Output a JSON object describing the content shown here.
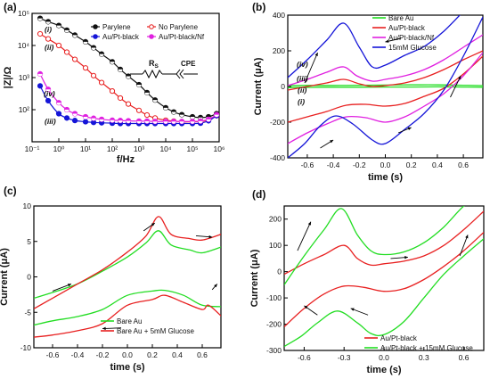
{
  "chart_data": [
    {
      "panel": "(a)",
      "type": "line",
      "xlabel": "f/Hz",
      "ylabel": "|Z|/Ω",
      "xscale": "log",
      "yscale": "log",
      "xlim": [
        0.1,
        1000000
      ],
      "ylim": [
        10,
        100000
      ],
      "x_tick_labels": [
        "10⁻¹",
        "10⁰",
        "10¹",
        "10²",
        "10³",
        "10⁴",
        "10⁵",
        "10⁶"
      ],
      "y_tick_labels": [
        "10²",
        "10³",
        "10⁴",
        "10⁵"
      ],
      "legend": [
        "Parylene",
        "No Parylene",
        "Au/Pt-black",
        "Au/Pt-black/Nf"
      ],
      "legend_position": "top",
      "circuit_labels": {
        "resistor": "R_S",
        "element": "CPE"
      },
      "x": [
        0.2,
        0.4,
        1,
        2,
        4,
        10,
        20,
        40,
        100,
        200,
        400,
        1000,
        2000,
        4000,
        10000,
        20000,
        40000,
        100000,
        200000,
        400000,
        800000
      ],
      "series": [
        {
          "name": "Parylene",
          "label": "(i)",
          "color": "#111111",
          "marker": "circle-half",
          "values": [
            70000,
            55000,
            42000,
            30000,
            21000,
            13000,
            8500,
            5400,
            3100,
            1800,
            1100,
            600,
            340,
            200,
            115,
            85,
            70,
            60,
            57,
            60,
            75
          ]
        },
        {
          "name": "No Parylene",
          "label": "(ii)",
          "color": "#e82020",
          "marker": "circle-open",
          "values": [
            23000,
            16000,
            10000,
            6200,
            3700,
            2000,
            1150,
            700,
            380,
            230,
            150,
            95,
            68,
            55,
            47,
            44,
            42,
            42,
            43,
            47,
            65
          ]
        },
        {
          "name": "Au/Pt-black",
          "label": "(iii)",
          "color": "#1515d8",
          "marker": "circle",
          "values": [
            550,
            190,
            75,
            55,
            46,
            42,
            40,
            39,
            38,
            37,
            37,
            37,
            37,
            37,
            37,
            37,
            37,
            37,
            38,
            45,
            65
          ]
        },
        {
          "name": "Au/Pt-black/Nf",
          "label": "(iv)",
          "color": "#e020e0",
          "marker": "circle-half",
          "values": [
            1300,
            430,
            165,
            100,
            75,
            60,
            54,
            50,
            47,
            46,
            45,
            44,
            44,
            43,
            43,
            43,
            43,
            43,
            44,
            50,
            70
          ]
        }
      ]
    },
    {
      "panel": "(b)",
      "type": "line",
      "xlabel": "time (s)",
      "ylabel": "Current (μA)",
      "xlim": [
        -0.75,
        0.75
      ],
      "ylim": [
        -400,
        400
      ],
      "x_ticks": [
        -0.6,
        -0.4,
        -0.2,
        0.0,
        0.2,
        0.4,
        0.6
      ],
      "y_ticks": [
        -400,
        -200,
        0,
        200,
        400
      ],
      "legend": [
        "Bare Au",
        "Au/Pt-black",
        "Au/Pt-black/Nf",
        "15mM Glucose"
      ],
      "legend_position": "top-right",
      "series": [
        {
          "name": "Bare Au",
          "label": "(i)",
          "color": "#22dd22",
          "upper": {
            "x": [
              -0.75,
              -0.6,
              -0.4,
              -0.2,
              0.0,
              0.2,
              0.4,
              0.6,
              0.75
            ],
            "values": [
              5,
              6,
              6,
              7,
              8,
              9,
              9,
              7,
              5
            ]
          },
          "lower": {
            "x": [
              -0.75,
              -0.6,
              -0.4,
              -0.2,
              0.0,
              0.2,
              0.4,
              0.6,
              0.75
            ],
            "values": [
              -6,
              -5,
              -4,
              -4,
              -3,
              -3,
              -2,
              -3,
              -4
            ]
          }
        },
        {
          "name": "Au/Pt-black",
          "label": "(ii)",
          "color": "#e82020",
          "upper": {
            "x": [
              -0.75,
              -0.6,
              -0.45,
              -0.32,
              -0.2,
              -0.1,
              0.0,
              0.15,
              0.3,
              0.45,
              0.6,
              0.75
            ],
            "values": [
              -20,
              0,
              20,
              40,
              15,
              0,
              5,
              20,
              50,
              95,
              150,
              200
            ]
          },
          "lower": {
            "x": [
              -0.75,
              -0.6,
              -0.45,
              -0.3,
              -0.15,
              0.0,
              0.15,
              0.3,
              0.45,
              0.6,
              0.75
            ],
            "values": [
              -200,
              -170,
              -140,
              -105,
              -100,
              -110,
              -95,
              -55,
              -10,
              70,
              170
            ]
          }
        },
        {
          "name": "Au/Pt-black/Nf",
          "label": "(iii)",
          "color": "#e020e0",
          "upper": {
            "x": [
              -0.75,
              -0.6,
              -0.45,
              -0.32,
              -0.22,
              -0.1,
              0.0,
              0.15,
              0.3,
              0.45,
              0.6,
              0.75
            ],
            "values": [
              5,
              40,
              80,
              110,
              60,
              30,
              40,
              60,
              95,
              150,
              220,
              290
            ]
          },
          "lower": {
            "x": [
              -0.75,
              -0.6,
              -0.45,
              -0.3,
              -0.15,
              0.0,
              0.15,
              0.3,
              0.45,
              0.6,
              0.75
            ],
            "values": [
              -320,
              -260,
              -210,
              -170,
              -175,
              -200,
              -170,
              -110,
              -40,
              60,
              190
            ]
          }
        },
        {
          "name": "15mM Glucose",
          "label": "(iv)",
          "color": "#1515d8",
          "upper": {
            "x": [
              -0.75,
              -0.6,
              -0.45,
              -0.32,
              -0.2,
              -0.1,
              0.0,
              0.15,
              0.3,
              0.45,
              0.6,
              0.75
            ],
            "values": [
              50,
              150,
              260,
              355,
              220,
              110,
              120,
              175,
              225,
              310,
              420,
              520
            ]
          },
          "lower": {
            "x": [
              -0.75,
              -0.62,
              -0.5,
              -0.38,
              -0.25,
              -0.1,
              0.0,
              0.15,
              0.3,
              0.45,
              0.6,
              0.75
            ],
            "values": [
              -400,
              -320,
              -220,
              -165,
              -210,
              -300,
              -320,
              -240,
              -150,
              -20,
              170,
              390
            ]
          }
        }
      ]
    },
    {
      "panel": "(c)",
      "type": "line",
      "xlabel": "time (s)",
      "ylabel": "Current (μA)",
      "xlim": [
        -0.75,
        0.75
      ],
      "ylim": [
        -10,
        10
      ],
      "x_ticks": [
        -0.6,
        -0.4,
        -0.2,
        0.0,
        0.2,
        0.4,
        0.6
      ],
      "y_ticks": [
        -10,
        -5,
        0,
        5,
        10
      ],
      "legend": [
        "Bare Au",
        "Bare Au + 5mM Glucose"
      ],
      "legend_position": "bottom-center",
      "series": [
        {
          "name": "Bare Au",
          "color": "#22dd22",
          "upper": {
            "x": [
              -0.75,
              -0.6,
              -0.4,
              -0.2,
              0.0,
              0.15,
              0.25,
              0.35,
              0.5,
              0.6,
              0.75
            ],
            "values": [
              -3.0,
              -2.2,
              -1.0,
              0.8,
              2.8,
              4.8,
              6.5,
              4.5,
              3.8,
              3.4,
              4.2
            ]
          },
          "lower": {
            "x": [
              -0.75,
              -0.6,
              -0.4,
              -0.2,
              0.0,
              0.2,
              0.3,
              0.45,
              0.6,
              0.75
            ],
            "values": [
              -6.8,
              -6.2,
              -5.6,
              -4.6,
              -2.6,
              -2.0,
              -1.9,
              -2.6,
              -4.0,
              -4.2
            ]
          }
        },
        {
          "name": "Bare Au + 5mM Glucose",
          "color": "#e82020",
          "upper": {
            "x": [
              -0.75,
              -0.6,
              -0.4,
              -0.2,
              0.0,
              0.15,
              0.25,
              0.35,
              0.5,
              0.6,
              0.75
            ],
            "values": [
              -4.5,
              -3.0,
              -1.0,
              1.0,
              3.5,
              5.8,
              8.5,
              6.0,
              5.4,
              5.2,
              6.0
            ]
          },
          "lower": {
            "x": [
              -0.75,
              -0.6,
              -0.4,
              -0.2,
              0.0,
              0.2,
              0.3,
              0.45,
              0.6,
              0.65,
              0.75
            ],
            "values": [
              -8.5,
              -8.2,
              -7.6,
              -6.6,
              -4.0,
              -3.2,
              -2.6,
              -3.6,
              -4.6,
              -4.0,
              -5.5
            ]
          }
        }
      ]
    },
    {
      "panel": "(d)",
      "type": "line",
      "xlabel": "time (s)",
      "ylabel": "Current (μA)",
      "xlim": [
        -0.75,
        0.75
      ],
      "ylim": [
        -300,
        250
      ],
      "x_ticks": [
        -0.6,
        -0.3,
        0.0,
        0.3,
        0.6
      ],
      "y_ticks": [
        -300,
        -200,
        -100,
        0,
        100,
        200
      ],
      "legend": [
        "Au/Pt-black",
        "Au/Pt-black + 15mM Glucose"
      ],
      "legend_position": "bottom-center",
      "series": [
        {
          "name": "Au/Pt-black",
          "color": "#e82020",
          "upper": {
            "x": [
              -0.75,
              -0.6,
              -0.45,
              -0.3,
              -0.2,
              -0.1,
              0.0,
              0.15,
              0.3,
              0.45,
              0.6,
              0.75
            ],
            "values": [
              -10,
              30,
              65,
              100,
              50,
              25,
              30,
              40,
              60,
              100,
              160,
              230
            ]
          },
          "lower": {
            "x": [
              -0.75,
              -0.6,
              -0.45,
              -0.3,
              -0.15,
              0.0,
              0.15,
              0.3,
              0.45,
              0.6,
              0.75
            ],
            "values": [
              -210,
              -140,
              -85,
              -55,
              -60,
              -75,
              -65,
              -30,
              20,
              80,
              150
            ]
          }
        },
        {
          "name": "Au/Pt-black + 15mM Glucose",
          "color": "#22dd22",
          "upper": {
            "x": [
              -0.75,
              -0.6,
              -0.45,
              -0.32,
              -0.2,
              -0.1,
              0.0,
              0.15,
              0.3,
              0.45,
              0.6,
              0.75
            ],
            "values": [
              -50,
              60,
              160,
              240,
              140,
              80,
              65,
              75,
              110,
              170,
              250,
              300
            ]
          },
          "lower": {
            "x": [
              -0.75,
              -0.62,
              -0.5,
              -0.35,
              -0.2,
              -0.1,
              0.0,
              0.15,
              0.3,
              0.45,
              0.6,
              0.75
            ],
            "values": [
              -285,
              -245,
              -195,
              -150,
              -195,
              -235,
              -240,
              -190,
              -100,
              -10,
              60,
              125
            ]
          }
        }
      ]
    }
  ]
}
